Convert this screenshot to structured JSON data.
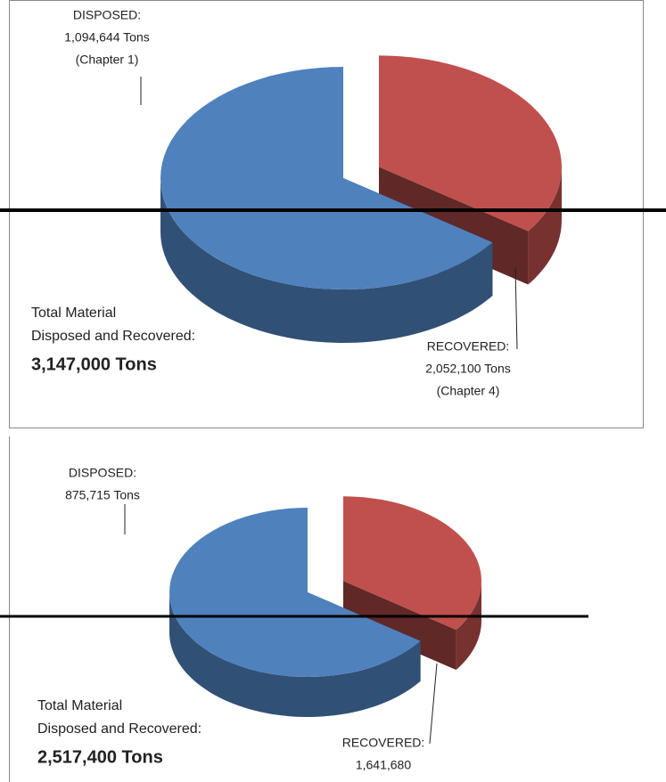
{
  "chart_data": [
    {
      "type": "pie3d",
      "categories": [
        "DISPOSED:",
        "RECOVERED:"
      ],
      "values": [
        1094644,
        2052100
      ],
      "value_labels": [
        "1,094,644 Tons",
        "2,052,100 Tons"
      ],
      "notes": [
        "(Chapter 1)",
        "(Chapter 4)"
      ],
      "colors": [
        "#c0504d",
        "#4f81bd"
      ],
      "total_text": [
        "Total Material",
        "Disposed and Recovered:"
      ],
      "total_value_label": "3,147,000 Tons"
    },
    {
      "type": "pie3d",
      "categories": [
        "DISPOSED:",
        "RECOVERED:"
      ],
      "values": [
        875715,
        1641680
      ],
      "value_labels": [
        "875,715 Tons",
        "1,641,680"
      ],
      "colors": [
        "#c0504d",
        "#4f81bd"
      ],
      "total_text": [
        "Total Material",
        "Disposed and Recovered:"
      ],
      "total_value_label": "2,517,400 Tons"
    }
  ]
}
